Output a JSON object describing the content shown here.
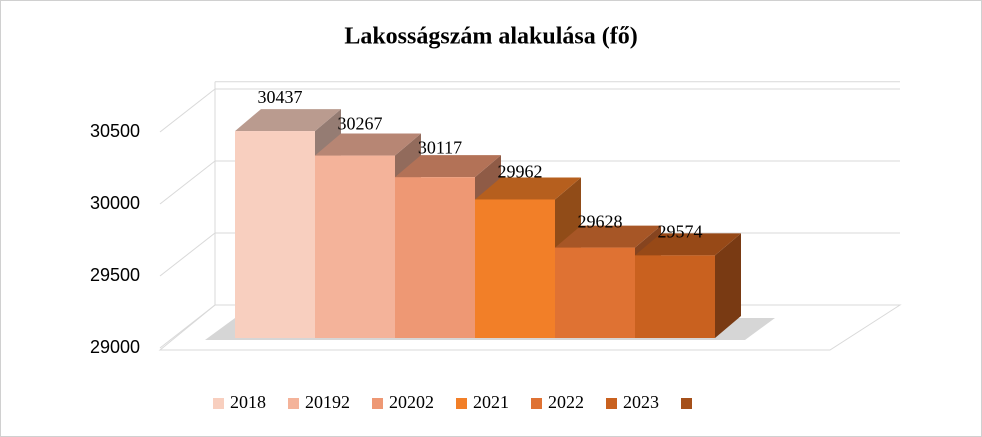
{
  "chart_data": {
    "type": "bar3d",
    "title": "Lakosságszám alakulása (fő)",
    "categories": [
      "2018",
      "20192",
      "20202",
      "2021",
      "2022",
      "2023",
      null
    ],
    "values": [
      30437,
      30267,
      30117,
      29962,
      29628,
      29574,
      null
    ],
    "colors": [
      "#f8cfbf",
      "#f4b39a",
      "#ee9874",
      "#f27f28",
      "#df7233",
      "#c9611f",
      "#a5501a"
    ],
    "ylim": [
      29000,
      30550
    ],
    "yticks": [
      29000,
      29500,
      30000,
      30500
    ],
    "grid": true,
    "legend": "bottom"
  }
}
